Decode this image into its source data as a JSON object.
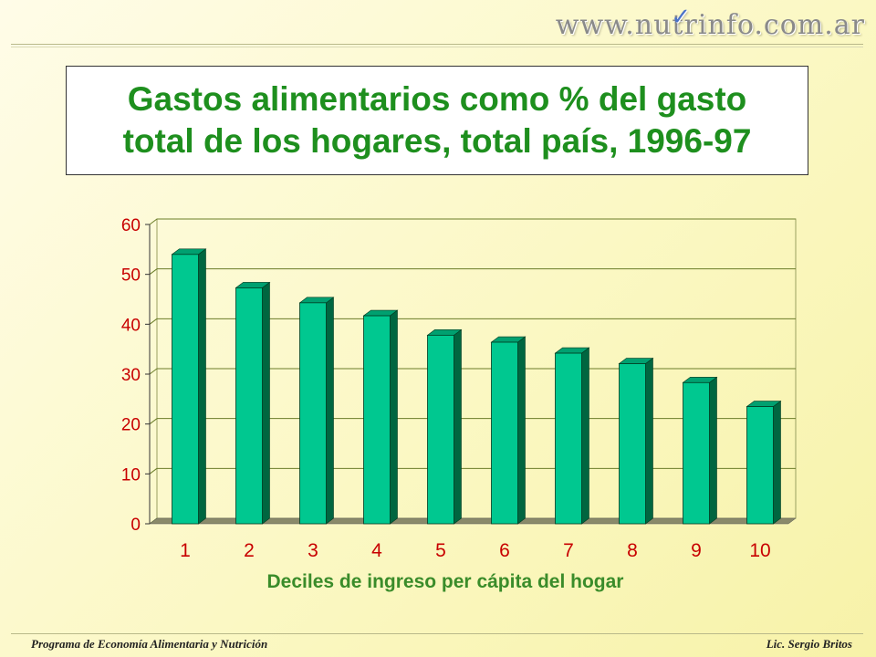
{
  "header": {
    "brand_text": "www.nutrinfo.com.ar"
  },
  "title": {
    "line1": "Gastos alimentarios como % del gasto",
    "line2": "total de los hogares, total país, 1996-97"
  },
  "footer": {
    "left": "Programa de Economía Alimentaria y Nutrición",
    "right": "Lic. Sergio Britos"
  },
  "colors": {
    "bar_face": "#00c890",
    "bar_side": "#006640",
    "bar_top": "#00a070",
    "axis_text": "#c80000",
    "xlabel_text": "#3a8c2a",
    "gridline": "#6b7d2a",
    "floor": "#8a8a6a"
  },
  "chart_data": {
    "type": "bar",
    "categories": [
      "1",
      "2",
      "3",
      "4",
      "5",
      "6",
      "7",
      "8",
      "9",
      "10"
    ],
    "values": [
      54,
      47.3,
      44.3,
      41.7,
      37.8,
      36.4,
      34.2,
      32.1,
      28.3,
      23.5
    ],
    "title": "Gastos alimentarios como % del gasto total de los hogares, total país, 1996-97",
    "xlabel": "Deciles de ingreso per cápita del hogar",
    "ylabel": "",
    "ylim": [
      0,
      60
    ],
    "yticks": [
      0,
      10,
      20,
      30,
      40,
      50,
      60
    ],
    "grid": true,
    "legend": "none",
    "style": "3d-column"
  }
}
